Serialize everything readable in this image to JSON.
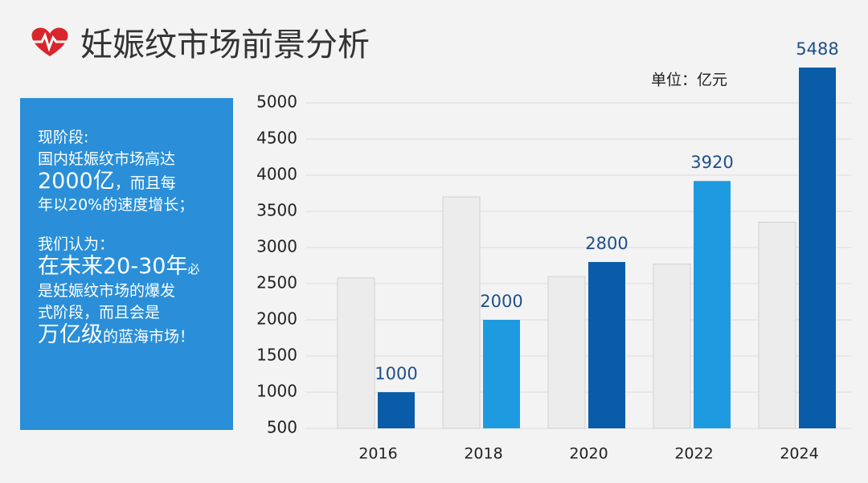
{
  "title": "妊娠纹市场前景分析",
  "sidebar": {
    "lines": [
      [
        "现阶段:"
      ],
      [
        "国内妊娠纹市场高达"
      ],
      [
        "2000亿",
        "，而且每"
      ],
      [
        "年以20%的速度增长；"
      ],
      [
        "我们认为："
      ],
      [
        "在未来20-30年",
        "必"
      ],
      [
        "是妊娠纹市场的爆发"
      ],
      [
        "式阶段，而且会是"
      ],
      [
        "万亿级",
        "的蓝海市场！"
      ]
    ]
  },
  "chart_data": {
    "type": "bar",
    "unit": "单位：亿元",
    "categories": [
      "2016",
      "2018",
      "2020",
      "2022",
      "2024"
    ],
    "series": [
      {
        "color": "#ececec",
        "values": [
          2580,
          3700,
          2600,
          2770,
          3350
        ]
      },
      {
        "colors": [
          "#0b5ca8",
          "#1e9be0",
          "#0b5ca8",
          "#1e9be0",
          "#0b5ca8"
        ],
        "values": [
          1000,
          2000,
          2800,
          3920,
          5488
        ]
      }
    ],
    "ylim": [
      500,
      5500
    ],
    "yticks": [
      500,
      1000,
      1500,
      2000,
      2500,
      3000,
      3500,
      4000,
      4500,
      5000
    ],
    "grid": true
  }
}
